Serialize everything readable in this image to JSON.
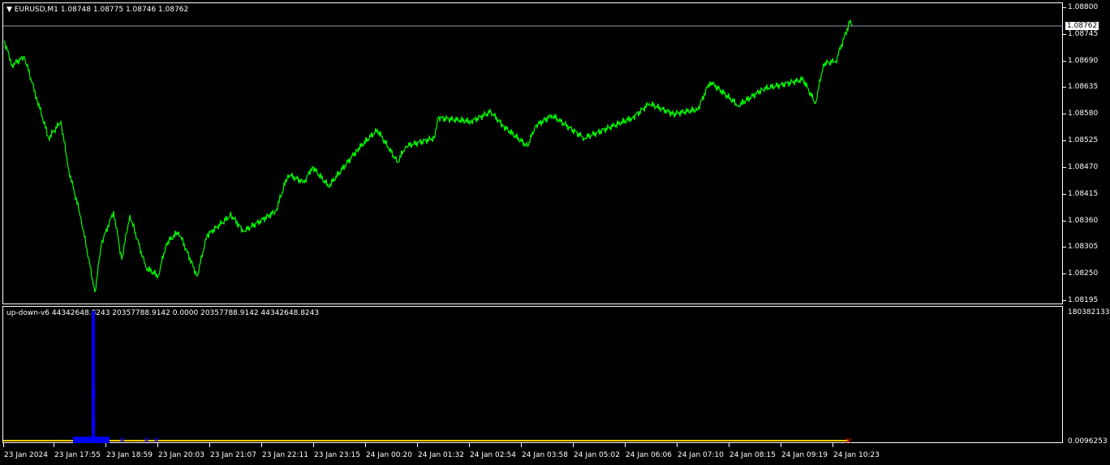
{
  "main": {
    "symbol_label": "EURUSD,M1",
    "ohlc": "1.08748 1.08775 1.08746 1.08762",
    "current_price": "1.08762"
  },
  "indicator": {
    "label": "up-down-v6 44342648.8243 20357788.9142 0.0000 20357788.9142 44342648.8243",
    "y_top": "180382133",
    "y_bottom": "0.0096253",
    "colors": {
      "buffer": "#0000ff",
      "baseline": "#ffcc00",
      "signal": "#ff0000"
    }
  },
  "chart_data": {
    "type": "line",
    "series_color": "#00ff00",
    "ylim": [
      1.08195,
      1.088
    ],
    "y_ticks": [
      "1.08800",
      "1.08745",
      "1.08690",
      "1.08635",
      "1.08580",
      "1.08525",
      "1.08470",
      "1.08415",
      "1.08360",
      "1.08305",
      "1.08250",
      "1.08195"
    ],
    "x_ticks": [
      "23 Jan 2024",
      "23 Jan 17:55",
      "23 Jan 18:59",
      "23 Jan 20:03",
      "23 Jan 21:07",
      "23 Jan 22:11",
      "23 Jan 23:15",
      "24 Jan 00:20",
      "24 Jan 01:32",
      "24 Jan 02:54",
      "24 Jan 03:58",
      "24 Jan 05:02",
      "24 Jan 06:06",
      "24 Jan 07:10",
      "24 Jan 08:15",
      "24 Jan 09:19",
      "24 Jan 10:23"
    ],
    "points": [
      [
        "23 Jan 16:52",
        1.08731
      ],
      [
        "23 Jan 17:02",
        1.08681
      ],
      [
        "23 Jan 17:17",
        1.08698
      ],
      [
        "23 Jan 17:32",
        1.08614
      ],
      [
        "23 Jan 17:47",
        1.0853
      ],
      [
        "23 Jan 18:02",
        1.08564
      ],
      [
        "23 Jan 18:12",
        1.08463
      ],
      [
        "23 Jan 18:27",
        1.08363
      ],
      [
        "23 Jan 18:44",
        1.08212
      ],
      [
        "23 Jan 18:52",
        1.08312
      ],
      [
        "23 Jan 19:07",
        1.08379
      ],
      [
        "23 Jan 19:17",
        1.08279
      ],
      [
        "23 Jan 19:27",
        1.08371
      ],
      [
        "23 Jan 19:47",
        1.08262
      ],
      [
        "23 Jan 20:02",
        1.08245
      ],
      [
        "23 Jan 20:12",
        1.08312
      ],
      [
        "23 Jan 20:27",
        1.08337
      ],
      [
        "23 Jan 20:50",
        1.08245
      ],
      [
        "23 Jan 21:02",
        1.08329
      ],
      [
        "23 Jan 21:32",
        1.08371
      ],
      [
        "23 Jan 21:47",
        1.08337
      ],
      [
        "23 Jan 22:27",
        1.08379
      ],
      [
        "23 Jan 22:42",
        1.08455
      ],
      [
        "23 Jan 23:02",
        1.08438
      ],
      [
        "23 Jan 23:12",
        1.08471
      ],
      [
        "23 Jan 23:32",
        1.0843
      ],
      [
        "24 Jan 00:07",
        1.08505
      ],
      [
        "24 Jan 00:32",
        1.08547
      ],
      [
        "24 Jan 00:57",
        1.0848
      ],
      [
        "24 Jan 01:07",
        1.08513
      ],
      [
        "24 Jan 01:42",
        1.0853
      ],
      [
        "24 Jan 01:47",
        1.08572
      ],
      [
        "24 Jan 02:27",
        1.08564
      ],
      [
        "24 Jan 02:52",
        1.08584
      ],
      [
        "24 Jan 03:07",
        1.08555
      ],
      [
        "24 Jan 03:37",
        1.08513
      ],
      [
        "24 Jan 03:47",
        1.08555
      ],
      [
        "24 Jan 04:07",
        1.08577
      ],
      [
        "24 Jan 04:47",
        1.0853
      ],
      [
        "24 Jan 05:47",
        1.08572
      ],
      [
        "24 Jan 06:07",
        1.08601
      ],
      [
        "24 Jan 06:37",
        1.0858
      ],
      [
        "24 Jan 07:07",
        1.08589
      ],
      [
        "24 Jan 07:22",
        1.08647
      ],
      [
        "24 Jan 07:57",
        1.08597
      ],
      [
        "24 Jan 08:27",
        1.08631
      ],
      [
        "24 Jan 09:17",
        1.08651
      ],
      [
        "24 Jan 09:32",
        1.08601
      ],
      [
        "24 Jan 09:42",
        1.08684
      ],
      [
        "24 Jan 09:57",
        1.08689
      ],
      [
        "24 Jan 10:15",
        1.08773
      ],
      [
        "24 Jan 10:17",
        1.08762
      ]
    ]
  }
}
